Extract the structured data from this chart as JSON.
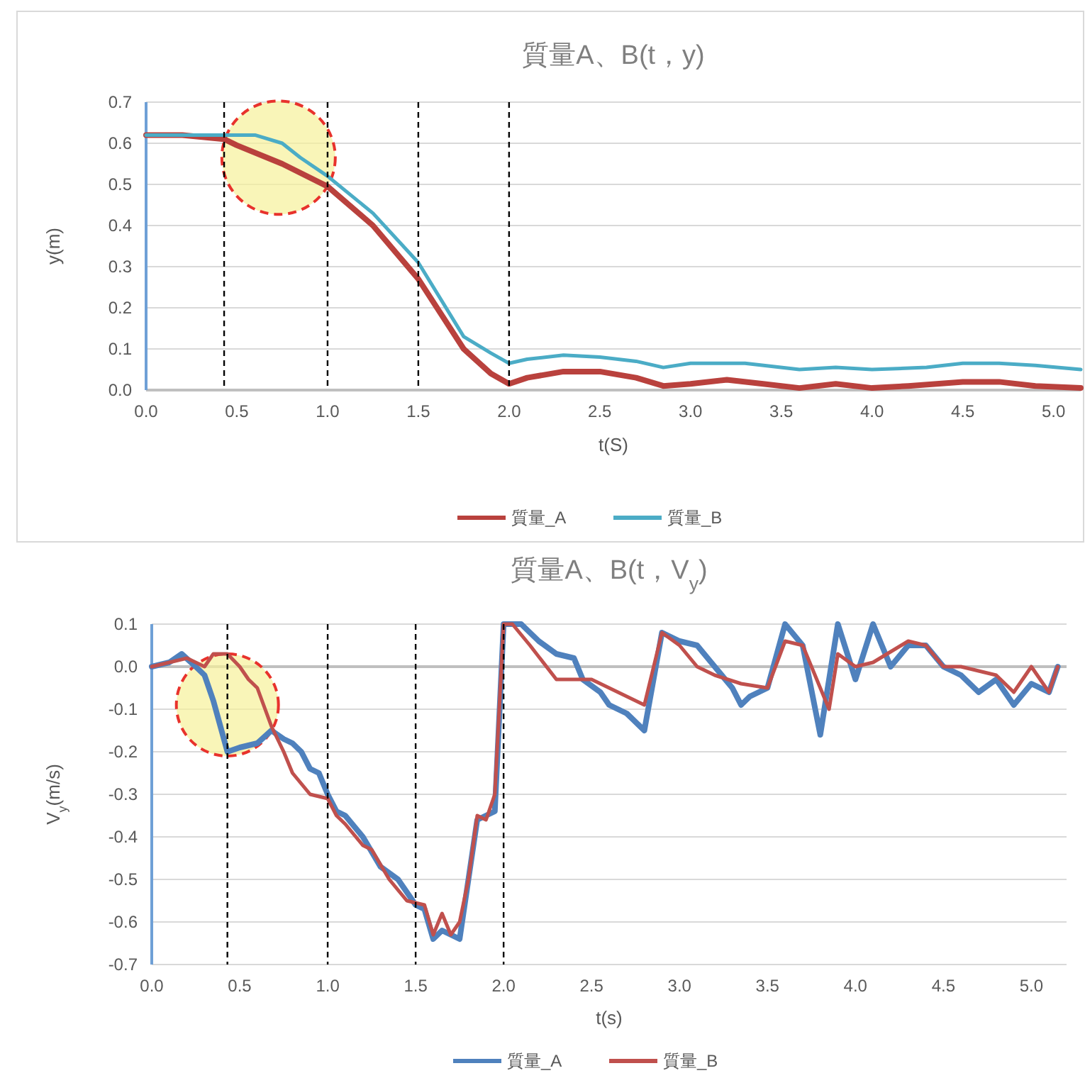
{
  "chart_data": [
    {
      "type": "line",
      "title": "質量A、B(t，y)",
      "xlabel": "t(S)",
      "ylabel": "y(m)",
      "xlim": [
        0,
        5.15
      ],
      "ylim": [
        0,
        0.7
      ],
      "xticks": [
        {
          "value": 0,
          "label": "0.0"
        },
        0.5,
        {
          "value": 1,
          "label": "1.0"
        },
        1.5,
        {
          "value": 2,
          "label": "2.0"
        },
        2.5,
        {
          "value": 3,
          "label": "3.0"
        },
        3.5,
        {
          "value": 4,
          "label": "4.0"
        },
        4.5,
        {
          "value": 5,
          "label": "5.0"
        }
      ],
      "yticks": [
        {
          "value": 0,
          "label": "0.0"
        },
        0.1,
        0.2,
        0.3,
        0.4,
        0.5,
        0.6,
        0.7
      ],
      "grid": "y",
      "legend": "bottom",
      "marker": "none",
      "line_style": "solid",
      "ref_lines": [
        {
          "axis": "x",
          "value": 0.43,
          "color": "#000000",
          "line_style": "dashed"
        },
        {
          "axis": "x",
          "value": 1.0,
          "color": "#000000",
          "line_style": "dashed"
        },
        {
          "axis": "x",
          "value": 1.5,
          "color": "#000000",
          "line_style": "dashed"
        },
        {
          "axis": "x",
          "value": 2.0,
          "color": "#000000",
          "line_style": "dashed"
        }
      ],
      "series": [
        {
          "name": "質量_A",
          "color": "#b9413d",
          "x": [
            0,
            0.2,
            0.43,
            0.5,
            0.75,
            1.0,
            1.25,
            1.5,
            1.75,
            1.9,
            2.0,
            2.1,
            2.3,
            2.5,
            2.7,
            2.85,
            3.0,
            3.2,
            3.4,
            3.6,
            3.8,
            4.0,
            4.2,
            4.5,
            4.7,
            4.9,
            5.15
          ],
          "values": [
            0.62,
            0.62,
            0.61,
            0.595,
            0.55,
            0.495,
            0.4,
            0.27,
            0.1,
            0.04,
            0.015,
            0.03,
            0.045,
            0.045,
            0.03,
            0.01,
            0.015,
            0.025,
            0.015,
            0.005,
            0.015,
            0.005,
            0.01,
            0.02,
            0.02,
            0.01,
            0.005
          ]
        },
        {
          "name": "質量_B",
          "color": "#4bacc6",
          "x": [
            0,
            0.2,
            0.43,
            0.6,
            0.75,
            0.85,
            1.0,
            1.25,
            1.5,
            1.75,
            1.9,
            2.0,
            2.1,
            2.3,
            2.5,
            2.7,
            2.85,
            3.0,
            3.3,
            3.6,
            3.8,
            4.0,
            4.3,
            4.5,
            4.7,
            4.9,
            5.15
          ],
          "values": [
            0.62,
            0.62,
            0.62,
            0.62,
            0.6,
            0.565,
            0.52,
            0.43,
            0.31,
            0.13,
            0.09,
            0.065,
            0.075,
            0.085,
            0.08,
            0.07,
            0.055,
            0.065,
            0.065,
            0.05,
            0.055,
            0.05,
            0.055,
            0.065,
            0.065,
            0.06,
            0.05
          ]
        }
      ]
    },
    {
      "type": "line",
      "title": "質量A、B(t，V$_{y}$)",
      "xlabel": "t(s)",
      "ylabel": "V$_{y}$(m/s)",
      "xlim": [
        0,
        5.2
      ],
      "ylim": [
        -0.7,
        0.1
      ],
      "xticks": [
        {
          "value": 0,
          "label": "0.0"
        },
        0.5,
        {
          "value": 1,
          "label": "1.0"
        },
        1.5,
        {
          "value": 2,
          "label": "2.0"
        },
        2.5,
        {
          "value": 3,
          "label": "3.0"
        },
        3.5,
        {
          "value": 4,
          "label": "4.0"
        },
        4.5,
        {
          "value": 5,
          "label": "5.0"
        }
      ],
      "yticks": [
        {
          "value": 0.1,
          "label": "0.1"
        },
        {
          "value": 0,
          "label": "0.0"
        },
        {
          "value": -0.1,
          "label": "-0.1"
        },
        {
          "value": -0.2,
          "label": "-0.2"
        },
        {
          "value": -0.3,
          "label": "-0.3"
        },
        {
          "value": -0.4,
          "label": "-0.4"
        },
        {
          "value": -0.5,
          "label": "-0.5"
        },
        {
          "value": -0.6,
          "label": "-0.6"
        },
        {
          "value": -0.7,
          "label": "-0.7"
        }
      ],
      "grid": "y",
      "legend": "bottom",
      "marker": "none",
      "line_style": "solid",
      "ref_lines": [
        {
          "axis": "x",
          "value": 0.43,
          "color": "#000000",
          "line_style": "dashed"
        },
        {
          "axis": "x",
          "value": 1.0,
          "color": "#000000",
          "line_style": "dashed"
        },
        {
          "axis": "x",
          "value": 1.5,
          "color": "#000000",
          "line_style": "dashed"
        },
        {
          "axis": "x",
          "value": 2.0,
          "color": "#000000",
          "line_style": "dashed"
        }
      ],
      "series": [
        {
          "name": "質量_A",
          "color": "#4f81bd",
          "x": [
            0,
            0.1,
            0.17,
            0.25,
            0.3,
            0.35,
            0.43,
            0.5,
            0.6,
            0.68,
            0.75,
            0.8,
            0.85,
            0.9,
            0.95,
            1.0,
            1.05,
            1.1,
            1.2,
            1.3,
            1.4,
            1.5,
            1.55,
            1.6,
            1.65,
            1.7,
            1.75,
            1.8,
            1.85,
            1.9,
            1.95,
            2.0,
            2.1,
            2.2,
            2.3,
            2.4,
            2.45,
            2.55,
            2.6,
            2.7,
            2.8,
            2.9,
            3.0,
            3.1,
            3.2,
            3.3,
            3.35,
            3.4,
            3.5,
            3.6,
            3.7,
            3.8,
            3.9,
            4.0,
            4.1,
            4.2,
            4.3,
            4.4,
            4.5,
            4.6,
            4.7,
            4.8,
            4.9,
            5.0,
            5.1,
            5.15
          ],
          "values": [
            0,
            0.01,
            0.03,
            0.0,
            -0.02,
            -0.08,
            -0.2,
            -0.19,
            -0.18,
            -0.15,
            -0.17,
            -0.18,
            -0.2,
            -0.24,
            -0.25,
            -0.3,
            -0.34,
            -0.35,
            -0.4,
            -0.47,
            -0.5,
            -0.56,
            -0.57,
            -0.64,
            -0.62,
            -0.63,
            -0.64,
            -0.5,
            -0.36,
            -0.35,
            -0.34,
            0.1,
            0.1,
            0.06,
            0.03,
            0.02,
            -0.03,
            -0.06,
            -0.09,
            -0.11,
            -0.15,
            0.08,
            0.06,
            0.05,
            0.0,
            -0.05,
            -0.09,
            -0.07,
            -0.05,
            0.1,
            0.05,
            -0.16,
            0.1,
            -0.03,
            0.1,
            0.0,
            0.05,
            0.05,
            0.0,
            -0.02,
            -0.06,
            -0.03,
            -0.09,
            -0.04,
            -0.06,
            0.0
          ]
        },
        {
          "name": "質量_B",
          "color": "#c0504d",
          "x": [
            0,
            0.1,
            0.2,
            0.3,
            0.35,
            0.43,
            0.5,
            0.55,
            0.6,
            0.68,
            0.75,
            0.8,
            0.9,
            1.0,
            1.05,
            1.1,
            1.2,
            1.25,
            1.35,
            1.45,
            1.55,
            1.6,
            1.65,
            1.7,
            1.75,
            1.8,
            1.85,
            1.9,
            1.95,
            2.0,
            2.05,
            2.15,
            2.3,
            2.5,
            2.6,
            2.8,
            2.9,
            3.0,
            3.1,
            3.2,
            3.35,
            3.5,
            3.6,
            3.7,
            3.85,
            3.9,
            4.0,
            4.1,
            4.3,
            4.4,
            4.5,
            4.6,
            4.8,
            4.9,
            5.0,
            5.1,
            5.15
          ],
          "values": [
            0,
            0.01,
            0.02,
            0.0,
            0.03,
            0.03,
            0.0,
            -0.03,
            -0.05,
            -0.14,
            -0.2,
            -0.25,
            -0.3,
            -0.31,
            -0.35,
            -0.37,
            -0.42,
            -0.43,
            -0.5,
            -0.55,
            -0.56,
            -0.63,
            -0.58,
            -0.63,
            -0.6,
            -0.5,
            -0.35,
            -0.36,
            -0.3,
            0.1,
            0.1,
            0.05,
            -0.03,
            -0.03,
            -0.05,
            -0.09,
            0.08,
            0.05,
            0.0,
            -0.02,
            -0.04,
            -0.05,
            0.06,
            0.05,
            -0.1,
            0.03,
            0.0,
            0.01,
            0.06,
            0.05,
            0.0,
            0.0,
            -0.02,
            -0.06,
            0.0,
            -0.06,
            0.0
          ]
        }
      ]
    }
  ]
}
